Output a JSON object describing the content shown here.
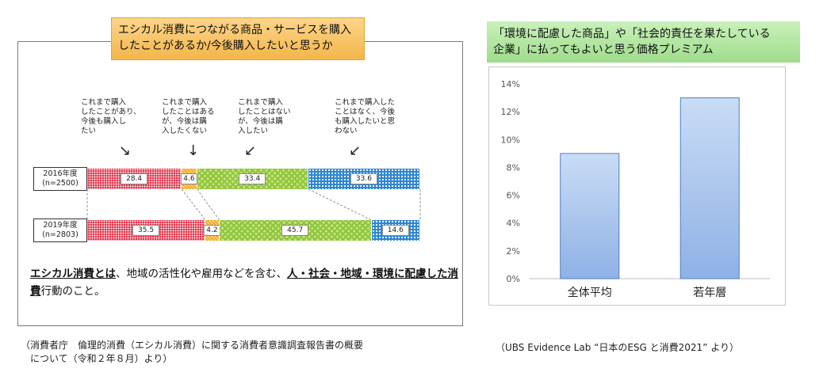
{
  "left_panel": {
    "title_line1": "エシカル消費につながる商品・サービスを購入",
    "title_line2": "したことがあるか/今後購入したいと思うか",
    "category_labels": [
      "これまで購入\nしたことがあり、\n今後も購入し\nたい",
      "これまで購入\nしたことはある\nが、今後は購\n入したくない",
      "これまで購入\nしたことはない\nが、今後は購\n入したい",
      "これまで購入した\nことはなく、今後\nも購入したいと思\nわない"
    ],
    "definition_bold1": "エシカル消費とは",
    "definition_text1": "、地域の活性化や雇用などを含む、",
    "definition_bold2": "人・社会・地域・環境に配慮した消費",
    "definition_text2": "行動のこと。",
    "source": "（消費者庁　倫理的消費（エシカル消費）に関する消費者意識調査報告書の概要\n　について（令和２年８月）より）"
  },
  "right_panel": {
    "title": "「環境に配慮した商品」や「社会的責任を果たしている\n 企業」に払ってもよいと思う価格プレミアム",
    "source": "（UBS Evidence Lab “日本のESG と消費2021” より）"
  },
  "chart_data": [
    {
      "type": "bar",
      "orientation": "horizontal-stacked-100",
      "categories": [
        "これまで購入したことがあり、今後も購入したい",
        "これまで購入したことはあるが、今後は購入したくない",
        "これまで購入したことはないが、今後は購入したい",
        "これまで購入したことはなく、今後も購入したいと思わない"
      ],
      "rows": [
        {
          "label": "2016年度",
          "n": "(n=2500)",
          "values": [
            28.4,
            4.6,
            33.4,
            33.6
          ]
        },
        {
          "label": "2019年度",
          "n": "(n=2803)",
          "values": [
            35.5,
            4.2,
            45.7,
            14.6
          ]
        }
      ],
      "colors": [
        "#e0334a",
        "#f4a91b",
        "#8cc63e",
        "#2f86d0"
      ]
    },
    {
      "type": "bar",
      "categories": [
        "全体平均",
        "若年層"
      ],
      "values": [
        9.0,
        13.0
      ],
      "ylim": [
        0,
        14
      ],
      "yticks": [
        "0%",
        "2%",
        "4%",
        "6%",
        "8%",
        "10%",
        "12%",
        "14%"
      ],
      "grid": false,
      "colors": {
        "bar_top": "#c9dcf5",
        "bar_bottom": "#8fb1e6",
        "bar_edge": "#4f7fc4"
      }
    }
  ]
}
